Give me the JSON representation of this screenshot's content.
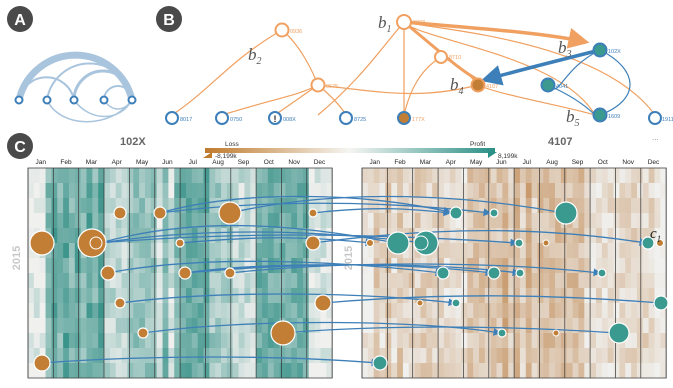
{
  "panels": {
    "a": {
      "label": "A"
    },
    "b": {
      "label": "B"
    },
    "c": {
      "label": "C"
    }
  },
  "annotations": {
    "b1": "b",
    "b1_sub": "1",
    "b2": "b",
    "b2_sub": "2",
    "b3": "b",
    "b3_sub": "3",
    "b4": "b",
    "b4_sub": "4",
    "b5": "b",
    "b5_sub": "5",
    "c1": "c",
    "c1_sub": "1"
  },
  "tree_nodes": {
    "n0003": "0003",
    "n0936": "0936",
    "n8710": "8710",
    "n102X": "102X",
    "n0675": "0675",
    "n4107": "4107",
    "n4041": "4041",
    "n8017": "8017",
    "n0750": "0750",
    "n008X": "008X",
    "n8725": "8725",
    "n177X": "177X",
    "n1609": "1609",
    "n1911": "1911",
    "warning_glyph": "!",
    "ellipsis": "..."
  },
  "legend": {
    "loss_label": "Loss",
    "loss_value": "-8,199k",
    "profit_label": "Profit",
    "profit_value": "8,199k",
    "loss_color": "#c07a2c",
    "profit_color": "#2a8f86"
  },
  "calendars": {
    "left_title": "102X",
    "right_title": "4107",
    "year": "2015",
    "months": [
      "Jan",
      "Feb",
      "Mar",
      "Apr",
      "May",
      "Jun",
      "Jul",
      "Aug",
      "Sep",
      "Oct",
      "Nov",
      "Dec"
    ]
  },
  "colors": {
    "orange": "#f0a060",
    "blue": "#3d7fb8",
    "teal": "#3a9a8f",
    "brown": "#c17e34",
    "node_blue": "#3d7fb8"
  }
}
